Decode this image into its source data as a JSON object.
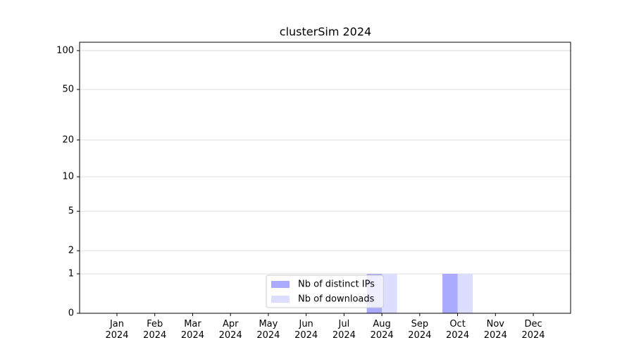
{
  "chart_data": {
    "type": "bar",
    "title": "clusterSim 2024",
    "categories": [
      "Jan\n2024",
      "Feb\n2024",
      "Mar\n2024",
      "Apr\n2024",
      "May\n2024",
      "Jun\n2024",
      "Jul\n2024",
      "Aug\n2024",
      "Sep\n2024",
      "Oct\n2024",
      "Nov\n2024",
      "Dec\n2024"
    ],
    "series": [
      {
        "name": "Nb of distinct IPs",
        "color": "#aaaaff",
        "values": [
          0,
          0,
          0,
          0,
          0,
          0,
          0,
          1,
          0,
          1,
          0,
          0
        ]
      },
      {
        "name": "Nb of downloads",
        "color": "#ddddff",
        "values": [
          0,
          0,
          0,
          0,
          0,
          0,
          0,
          1,
          0,
          1,
          0,
          0
        ]
      }
    ],
    "yscale": "log1p",
    "ylim": [
      0,
      116
    ],
    "yticks": [
      0,
      1,
      2,
      5,
      10,
      20,
      50,
      100
    ],
    "grid": true,
    "legend": "lower center"
  }
}
